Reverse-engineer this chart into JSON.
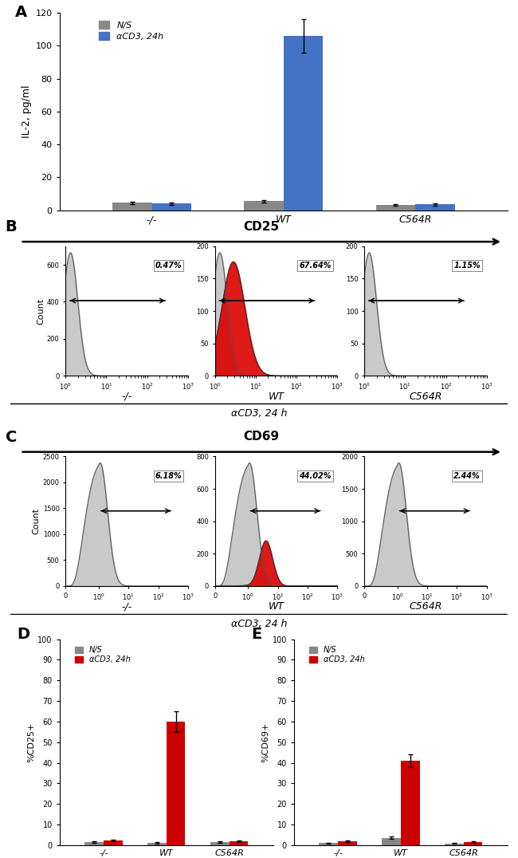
{
  "panel_A": {
    "categories": [
      "-/-",
      "WT",
      "C564R"
    ],
    "NS_values": [
      4.5,
      5.5,
      3.0
    ],
    "NS_errors": [
      0.8,
      0.8,
      0.5
    ],
    "aCD3_values": [
      4.0,
      106,
      3.5
    ],
    "aCD3_errors": [
      0.7,
      10,
      0.6
    ],
    "ylabel": "IL-2, pg/ml",
    "ylim": [
      0,
      120
    ],
    "yticks": [
      0,
      20,
      40,
      60,
      80,
      100,
      120
    ],
    "NS_color": "#888888",
    "aCD3_color": "#4472C4",
    "legend_NS": "N/S",
    "legend_aCD3": "αCD3, 24h"
  },
  "panel_B": {
    "title": "CD25",
    "panels": [
      {
        "label": "-/-",
        "pct": "0.47%",
        "has_red": false,
        "ymax": 700,
        "yticks": [
          0,
          200,
          400,
          600
        ],
        "xstart": 0
      },
      {
        "label": "WT",
        "pct": "67.64%",
        "has_red": true,
        "ymax": 200,
        "yticks": [
          0,
          50,
          100,
          150,
          200
        ],
        "xstart": 1
      },
      {
        "label": "C564R",
        "pct": "1.15%",
        "has_red": false,
        "ymax": 200,
        "yticks": [
          0,
          50,
          100,
          150,
          200
        ],
        "xstart": 1
      }
    ],
    "xlabel_common": "αCD3, 24 h"
  },
  "panel_C": {
    "title": "CD69",
    "panels": [
      {
        "label": "-/-",
        "pct": "6.18%",
        "has_red": false,
        "ymax": 2500,
        "yticks": [
          0,
          500,
          1000,
          1500,
          2000,
          2500
        ],
        "xstart": 0
      },
      {
        "label": "WT",
        "pct": "44.02%",
        "has_red": true,
        "ymax": 800,
        "yticks": [
          0,
          200,
          400,
          600,
          800
        ],
        "xstart": 0
      },
      {
        "label": "C564R",
        "pct": "2.44%",
        "has_red": false,
        "ymax": 2000,
        "yticks": [
          0,
          500,
          1000,
          1500,
          2000
        ],
        "xstart": 0
      }
    ],
    "xlabel_common": "αCD3, 24 h"
  },
  "panel_D": {
    "categories": [
      "-/-",
      "WT",
      "C564R"
    ],
    "NS_values": [
      1.5,
      1.2,
      1.5
    ],
    "NS_errors": [
      0.4,
      0.3,
      0.3
    ],
    "aCD3_values": [
      2.2,
      60,
      1.8
    ],
    "aCD3_errors": [
      0.5,
      5,
      0.4
    ],
    "ylabel": "%CD25+",
    "ylim": [
      0,
      100
    ],
    "yticks": [
      0,
      10,
      20,
      30,
      40,
      50,
      60,
      70,
      80,
      90,
      100
    ],
    "NS_color": "#888888",
    "aCD3_color": "#cc0000",
    "legend_NS": "N/S",
    "legend_aCD3": "αCD3, 24h"
  },
  "panel_E": {
    "categories": [
      "-/-",
      "WT",
      "C564R"
    ],
    "NS_values": [
      1.0,
      3.5,
      0.8
    ],
    "NS_errors": [
      0.3,
      0.6,
      0.2
    ],
    "aCD3_values": [
      1.8,
      41,
      1.5
    ],
    "aCD3_errors": [
      0.4,
      3,
      0.4
    ],
    "ylabel": "%CD69+",
    "ylim": [
      0,
      100
    ],
    "yticks": [
      0,
      10,
      20,
      30,
      40,
      50,
      60,
      70,
      80,
      90,
      100
    ],
    "NS_color": "#888888",
    "aCD3_color": "#cc0000",
    "legend_NS": "N/S",
    "legend_aCD3": "αCD3, 24h"
  },
  "background_color": "#ffffff"
}
